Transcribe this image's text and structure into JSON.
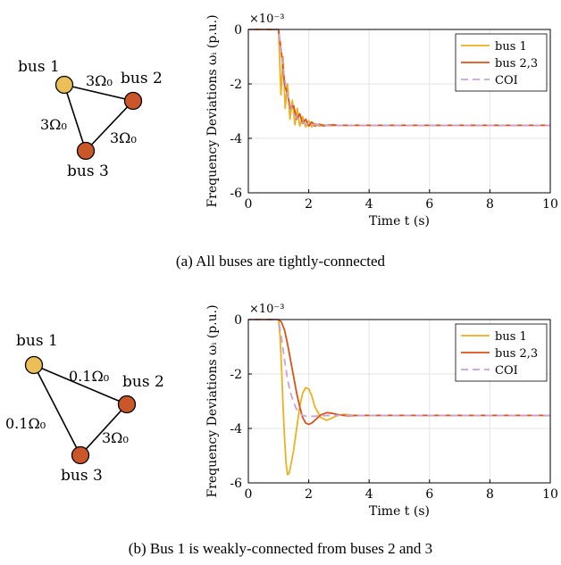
{
  "captions": {
    "a": "(a) All buses are tightly-connected",
    "b": "(b) Bus 1 is weakly-connected from buses 2 and 3"
  },
  "panels": [
    {
      "network": {
        "bus1": "bus 1",
        "bus2": "bus 2",
        "bus3": "bus 3",
        "edge12": "3Ω₀",
        "edge13": "3Ω₀",
        "edge23": "3Ω₀",
        "colors": {
          "bus1": "#EBBE58",
          "bus23": "#C9572A"
        }
      }
    },
    {
      "network": {
        "bus1": "bus 1",
        "bus2": "bus 2",
        "bus3": "bus 3",
        "edge12": "0.1Ω₀",
        "edge13": "0.1Ω₀",
        "edge23": "3Ω₀",
        "colors": {
          "bus1": "#EBBE58",
          "bus23": "#C9572A"
        }
      }
    }
  ],
  "chart_data": [
    {
      "type": "line",
      "xlabel": "Time t (s)",
      "ylabel": "Frequency Deviations ωᵢ (p.u.)",
      "y_multiplier": "×10⁻³",
      "xlim": [
        0,
        10
      ],
      "ylim": [
        -6,
        0
      ],
      "xticks": [
        "0",
        "2",
        "4",
        "6",
        "8",
        "10"
      ],
      "yticks": [
        "0",
        "-2",
        "-4",
        "-6"
      ],
      "grid": true,
      "legend": "top-right",
      "series": [
        {
          "name": "bus 1",
          "color": "#EDB120",
          "style": "solid",
          "x": [
            0,
            1.0,
            1.08,
            1.15,
            1.22,
            1.3,
            1.38,
            1.46,
            1.54,
            1.62,
            1.7,
            1.8,
            1.9,
            2.0,
            2.1,
            2.2,
            2.35,
            2.5,
            2.7,
            3.0,
            4.0,
            10
          ],
          "y": [
            0,
            0,
            -2.4,
            -1.0,
            -2.9,
            -2.0,
            -3.3,
            -2.6,
            -3.5,
            -2.9,
            -3.55,
            -3.2,
            -3.58,
            -3.35,
            -3.58,
            -3.45,
            -3.55,
            -3.5,
            -3.54,
            -3.52,
            -3.52,
            -3.52
          ]
        },
        {
          "name": "bus 2,3",
          "color": "#D95319",
          "style": "solid",
          "x": [
            0,
            1.0,
            1.1,
            1.2,
            1.3,
            1.4,
            1.5,
            1.6,
            1.7,
            1.8,
            1.9,
            2.0,
            2.1,
            2.2,
            2.35,
            2.5,
            2.7,
            3.0,
            4.0,
            10
          ],
          "y": [
            0,
            0,
            -0.9,
            -2.0,
            -2.4,
            -2.9,
            -2.8,
            -3.3,
            -3.1,
            -3.45,
            -3.3,
            -3.55,
            -3.4,
            -3.55,
            -3.48,
            -3.54,
            -3.5,
            -3.52,
            -3.52,
            -3.52
          ]
        },
        {
          "name": "COI",
          "color": "#C8A2D8",
          "style": "dashed",
          "x": [
            0,
            1.0,
            1.1,
            1.2,
            1.3,
            1.4,
            1.5,
            1.6,
            1.7,
            1.8,
            2.0,
            2.2,
            2.5,
            3.0,
            10
          ],
          "y": [
            0,
            0,
            -1.0,
            -1.8,
            -2.4,
            -2.8,
            -3.1,
            -3.25,
            -3.35,
            -3.42,
            -3.48,
            -3.5,
            -3.52,
            -3.52,
            -3.52
          ]
        }
      ]
    },
    {
      "type": "line",
      "xlabel": "Time t (s)",
      "ylabel": "Frequency Deviations ωᵢ (p.u.)",
      "y_multiplier": "×10⁻³",
      "xlim": [
        0,
        10
      ],
      "ylim": [
        -6,
        0
      ],
      "xticks": [
        "0",
        "2",
        "4",
        "6",
        "8",
        "10"
      ],
      "yticks": [
        "0",
        "-2",
        "-4",
        "-6"
      ],
      "grid": true,
      "legend": "top-right",
      "series": [
        {
          "name": "bus 1",
          "color": "#EDB120",
          "style": "solid",
          "x": [
            0,
            1.0,
            1.05,
            1.1,
            1.15,
            1.2,
            1.25,
            1.3,
            1.35,
            1.4,
            1.5,
            1.6,
            1.7,
            1.8,
            1.9,
            2.0,
            2.1,
            2.2,
            2.4,
            2.6,
            2.8,
            3.0,
            3.2,
            3.5,
            4.0,
            10
          ],
          "y": [
            0,
            0,
            -0.6,
            -1.8,
            -3.2,
            -4.4,
            -5.3,
            -5.7,
            -5.65,
            -5.4,
            -4.8,
            -4.0,
            -3.2,
            -2.7,
            -2.5,
            -2.55,
            -2.8,
            -3.2,
            -3.6,
            -3.7,
            -3.6,
            -3.5,
            -3.48,
            -3.52,
            -3.52,
            -3.52
          ]
        },
        {
          "name": "bus 2,3",
          "color": "#D95319",
          "style": "solid",
          "x": [
            0,
            1.0,
            1.1,
            1.2,
            1.3,
            1.4,
            1.5,
            1.6,
            1.7,
            1.8,
            1.9,
            2.0,
            2.1,
            2.2,
            2.4,
            2.6,
            2.8,
            3.0,
            3.3,
            3.6,
            4.0,
            10
          ],
          "y": [
            0,
            0,
            -0.1,
            -0.4,
            -0.9,
            -1.5,
            -2.1,
            -2.7,
            -3.2,
            -3.6,
            -3.8,
            -3.85,
            -3.8,
            -3.7,
            -3.5,
            -3.42,
            -3.45,
            -3.5,
            -3.54,
            -3.52,
            -3.52,
            -3.52
          ]
        },
        {
          "name": "COI",
          "color": "#C8A2D8",
          "style": "dashed",
          "x": [
            0,
            1.0,
            1.1,
            1.2,
            1.3,
            1.4,
            1.5,
            1.6,
            1.7,
            1.8,
            1.9,
            2.0,
            2.2,
            2.5,
            3.0,
            10
          ],
          "y": [
            0,
            0,
            -0.7,
            -1.5,
            -2.2,
            -2.7,
            -3.05,
            -3.3,
            -3.45,
            -3.52,
            -3.55,
            -3.56,
            -3.55,
            -3.53,
            -3.52,
            -3.52
          ]
        }
      ]
    }
  ]
}
